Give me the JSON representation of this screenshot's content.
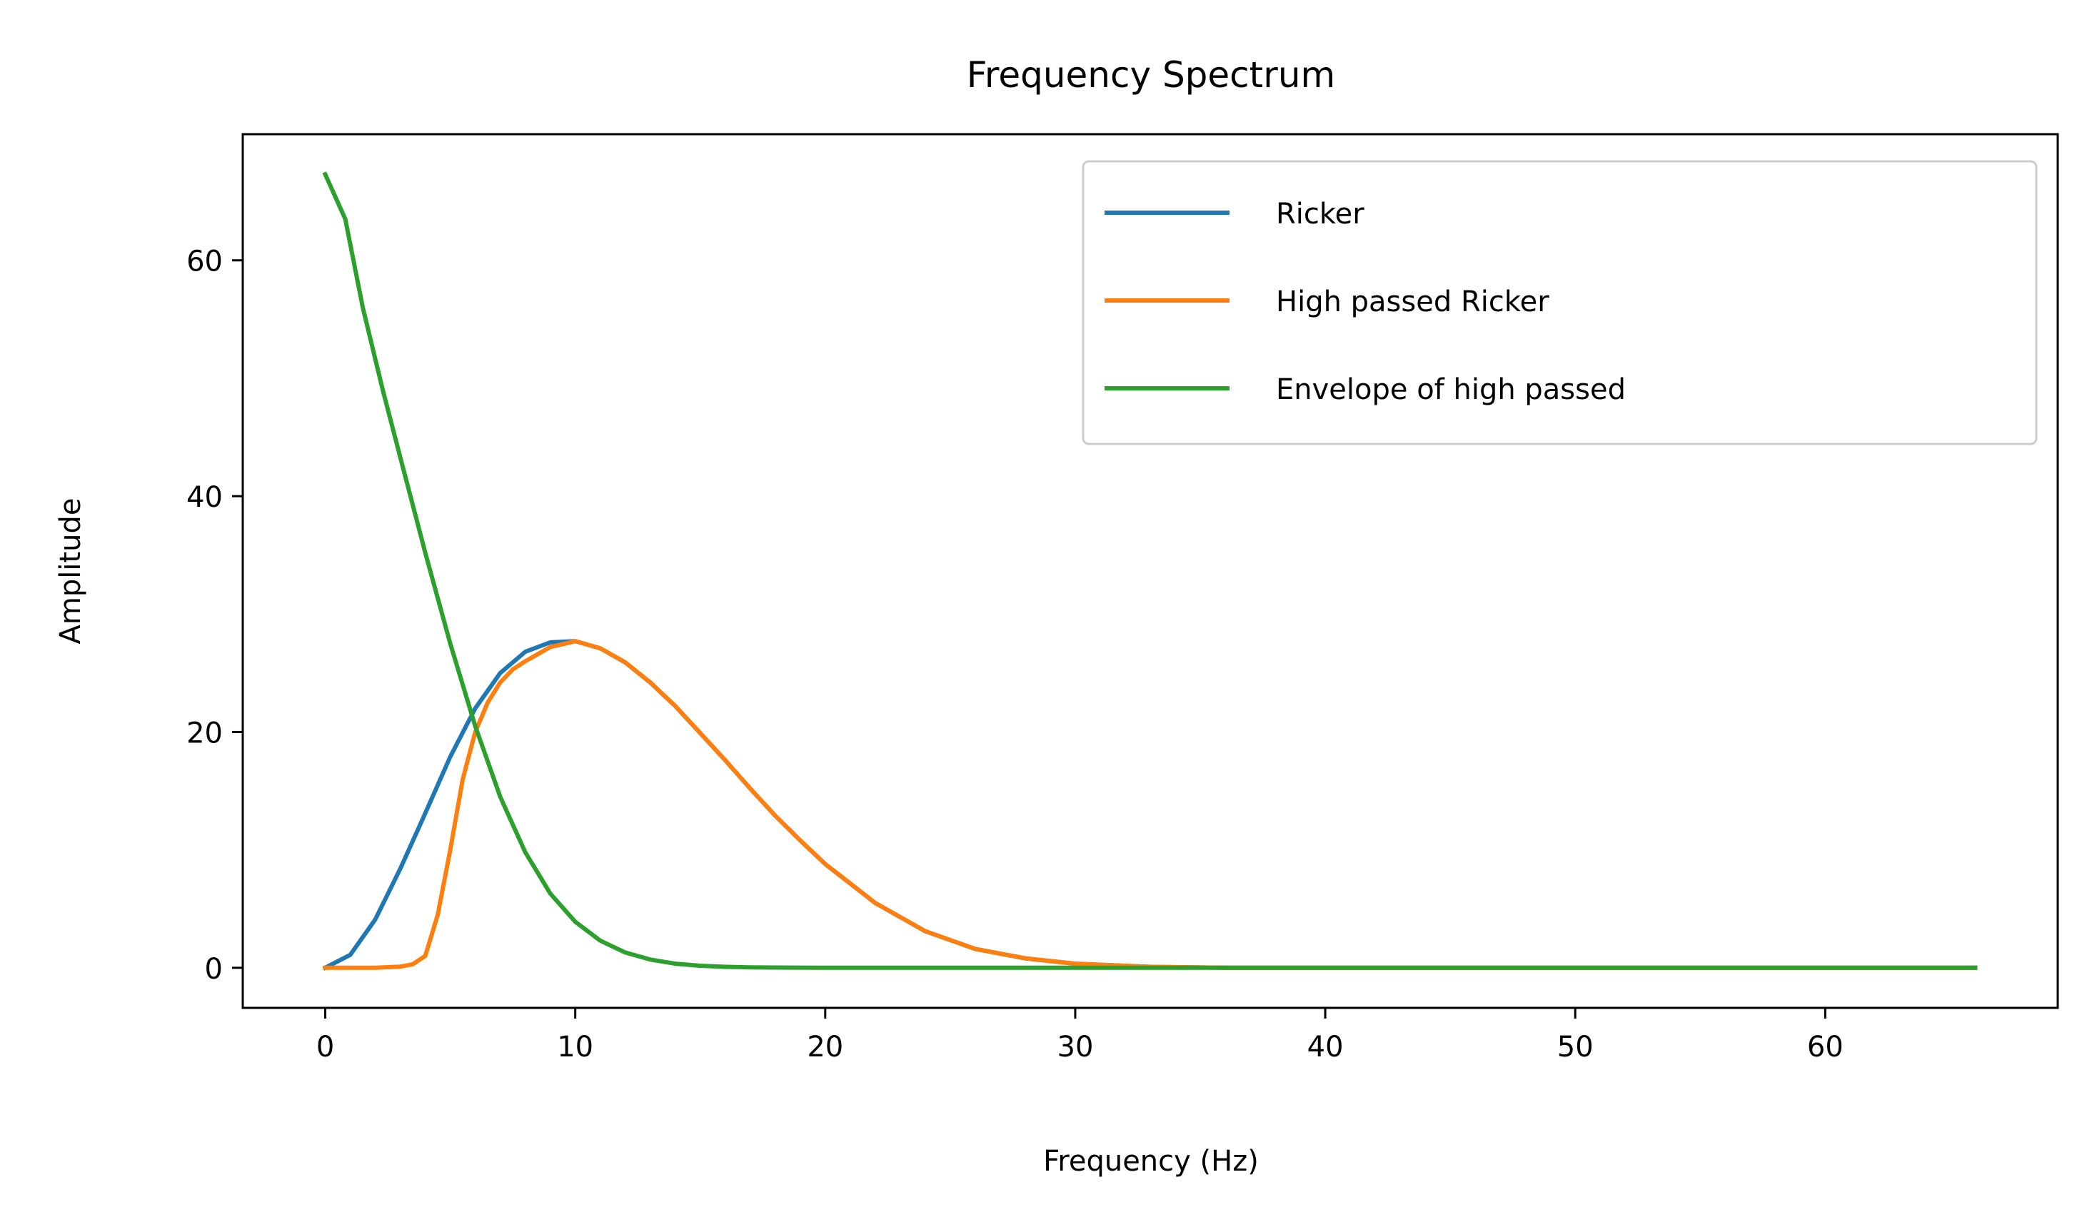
{
  "chart_data": {
    "type": "line",
    "title": "Frequency Spectrum",
    "xlabel": "Frequency (Hz)",
    "ylabel": "Amplitude",
    "xlim": [
      -3.3,
      69.3
    ],
    "ylim": [
      -3.4,
      70.7
    ],
    "xticks": [
      0,
      10,
      20,
      30,
      40,
      50,
      60
    ],
    "yticks": [
      0,
      20,
      40,
      60
    ],
    "grid": false,
    "legend_position": "top-right",
    "series": [
      {
        "name": "Ricker",
        "color": "#1f77b4",
        "x": [
          0,
          1,
          2,
          3,
          4,
          5,
          6,
          7,
          8,
          9,
          10,
          11,
          12,
          13,
          14,
          15,
          16,
          17,
          18,
          19,
          20,
          22,
          24,
          26,
          28,
          30,
          33,
          36,
          40,
          45,
          50,
          55,
          60,
          66
        ],
        "y": [
          0,
          1.1,
          4.1,
          8.4,
          13.1,
          17.9,
          22.0,
          25.0,
          26.8,
          27.6,
          27.7,
          27.1,
          25.9,
          24.2,
          22.2,
          19.9,
          17.6,
          15.2,
          12.9,
          10.8,
          8.8,
          5.5,
          3.1,
          1.6,
          0.8,
          0.35,
          0.08,
          0.01,
          0,
          0,
          0,
          0,
          0,
          0
        ]
      },
      {
        "name": "High passed Ricker",
        "color": "#ff7f0e",
        "x": [
          0,
          1,
          2,
          3,
          3.5,
          4,
          4.5,
          5,
          5.5,
          6,
          6.5,
          7,
          7.5,
          8,
          9,
          10,
          11,
          12,
          13,
          14,
          15,
          16,
          17,
          18,
          19,
          20,
          22,
          24,
          26,
          28,
          30,
          33,
          36,
          40,
          45,
          50,
          55,
          60,
          66
        ],
        "y": [
          0,
          0,
          0,
          0.1,
          0.3,
          1.0,
          4.5,
          10.0,
          16.0,
          20.0,
          22.5,
          24.2,
          25.3,
          26.0,
          27.2,
          27.7,
          27.1,
          25.9,
          24.2,
          22.2,
          19.9,
          17.6,
          15.2,
          12.9,
          10.8,
          8.8,
          5.5,
          3.1,
          1.6,
          0.8,
          0.35,
          0.08,
          0.01,
          0,
          0,
          0,
          0,
          0,
          0
        ]
      },
      {
        "name": "Envelope of high passed",
        "color": "#2ca02c",
        "x": [
          0,
          0.8,
          1.5,
          2.3,
          3,
          4,
          5,
          6,
          7,
          8,
          9,
          10,
          11,
          12,
          13,
          14,
          15,
          16,
          17,
          18,
          20,
          25,
          30,
          40,
          50,
          60,
          66
        ],
        "y": [
          67.3,
          63.5,
          56.0,
          49.0,
          43.3,
          35.2,
          27.5,
          20.5,
          14.5,
          9.8,
          6.3,
          3.9,
          2.3,
          1.3,
          0.7,
          0.35,
          0.17,
          0.08,
          0.04,
          0.02,
          0,
          0,
          0,
          0,
          0,
          0,
          0
        ]
      }
    ]
  }
}
